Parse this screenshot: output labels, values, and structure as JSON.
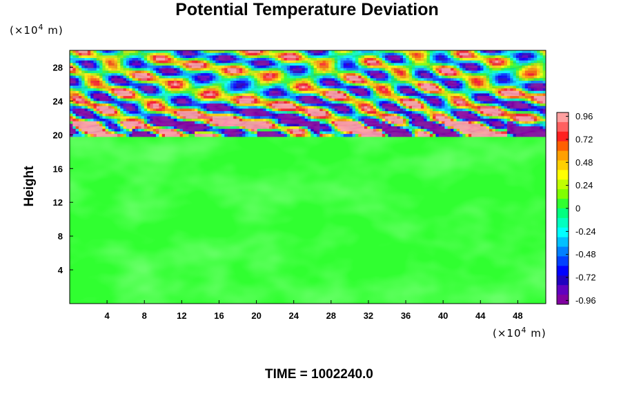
{
  "chart_data": {
    "type": "heatmap",
    "title": "Potential Temperature Deviation",
    "ylabel": "Height",
    "x_unit": "(×10",
    "y_unit": "(×10",
    "unit_exponent": "4",
    "unit_suffix": " m)",
    "time_label": "TIME = 1002240.0",
    "xlim": [
      0,
      51
    ],
    "ylim": [
      0,
      30
    ],
    "x_ticks": [
      4,
      8,
      12,
      16,
      20,
      24,
      28,
      32,
      36,
      40,
      44,
      48
    ],
    "y_ticks": [
      4,
      8,
      12,
      16,
      20,
      24,
      28
    ],
    "colorbar": {
      "range": [
        -1.0,
        1.0
      ],
      "tick_values": [
        0.96,
        0.72,
        0.48,
        0.24,
        0,
        -0.24,
        -0.48,
        -0.72,
        -0.96
      ],
      "tick_labels": [
        "0.96",
        "0.72",
        "0.48",
        "0.24",
        "0",
        "-0.24",
        "-0.48",
        "-0.72",
        "-0.96"
      ],
      "colors_top_to_bottom": [
        "#ffa0a0",
        "#ff6060",
        "#ff2020",
        "#ff6000",
        "#ffa000",
        "#ffd000",
        "#ffff00",
        "#c0ff00",
        "#80ff00",
        "#30ff30",
        "#00ff80",
        "#00ffc0",
        "#00ffff",
        "#00c0ff",
        "#0080ff",
        "#0040ff",
        "#0000ff",
        "#2000c0",
        "#6000c0",
        "#8000a0"
      ]
    },
    "field_regions": [
      {
        "y_range": [
          0,
          19.8
        ],
        "value_range": [
          -0.3,
          0.3
        ],
        "dominant_value": 0.02
      },
      {
        "y_range": [
          19.8,
          30
        ],
        "value_range": [
          -1.0,
          1.0
        ],
        "pattern": "banded oscillations"
      }
    ]
  }
}
